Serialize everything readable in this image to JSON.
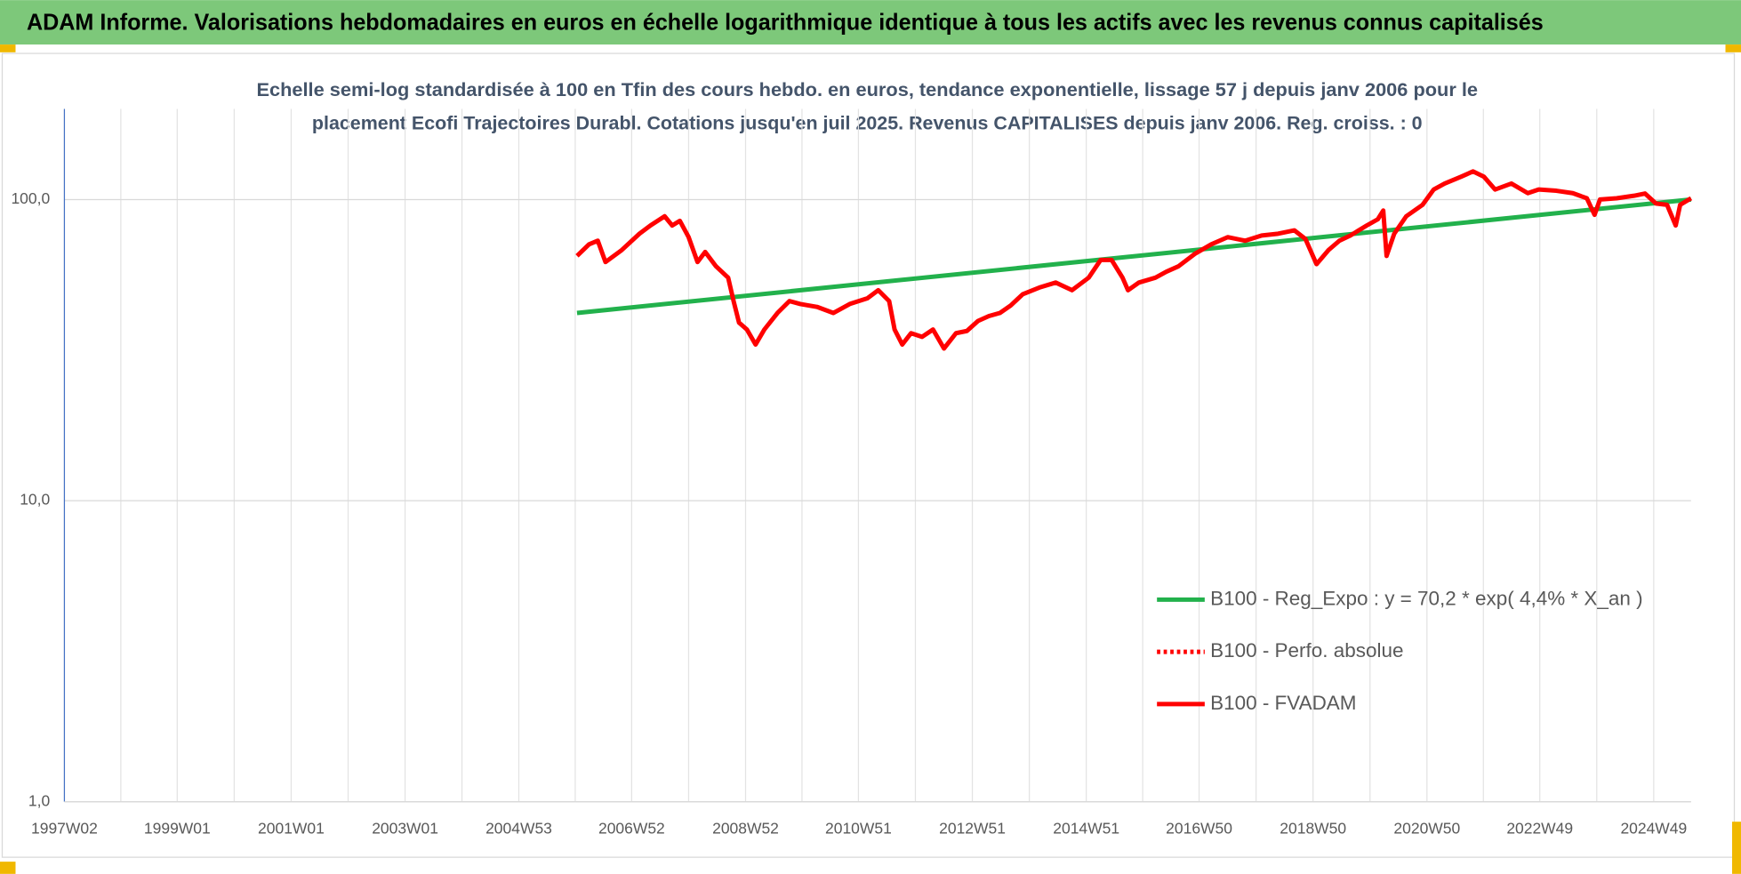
{
  "header": {
    "title": "ADAM Informe. Valorisations hebdomadaires en euros en échelle logarithmique identique à tous les actifs avec les revenus connus capitalisés"
  },
  "chart_data": {
    "type": "line",
    "title": [
      "Echelle semi-log standardisée à 100 en Tfin des cours hebdo. en euros, tendance exponentielle, lissage 57 j depuis janv 2006 pour le",
      "placement Ecofi Trajectoires Durabl. Cotations jusqu'en juil 2025. Revenus CAPITALISES depuis janv 2006. Reg. croiss. : 0"
    ],
    "log_scale": true,
    "grid": true,
    "legend": "lower right",
    "xlim": [
      "1997W02",
      "2025W31"
    ],
    "xticks": [
      "1997W02",
      "1999W01",
      "2001W01",
      "2003W01",
      "2004W53",
      "2006W52",
      "2008W52",
      "2010W51",
      "2012W51",
      "2014W51",
      "2016W50",
      "2018W50",
      "2020W50",
      "2022W49",
      "2024W49"
    ],
    "ylim": [
      1,
      200
    ],
    "yticks": [
      {
        "value": 1,
        "label": "1,0"
      },
      {
        "value": 10,
        "label": "10,0"
      },
      {
        "value": 100,
        "label": "100,0"
      }
    ],
    "series": [
      {
        "name": "B100 - Reg_Expo : y = 70,2 * exp( 4,4% *  X_an )",
        "color": "#22b14c",
        "x": [
          "2006W02",
          "2025W31"
        ],
        "values": [
          42,
          100
        ]
      },
      {
        "name": "B100 - Perfo. absolue",
        "color": "#ff0000",
        "style": "dotted"
      },
      {
        "name": "B100 - FVADAM",
        "color": "#ff0000",
        "x": [
          "2006W02",
          "2006W13",
          "2006W21",
          "2006W28",
          "2006W43",
          "2007W07",
          "2007W17",
          "2007W30",
          "2007W37",
          "2007W44",
          "2007W52",
          "2008W08",
          "2008W15",
          "2008W25",
          "2008W36",
          "2008W41",
          "2008W46",
          "2009W01",
          "2009W09",
          "2009W17",
          "2009W29",
          "2009W40",
          "2009W50",
          "2010W13",
          "2010W28",
          "2010W43",
          "2011W07",
          "2011W17",
          "2011W27",
          "2011W32",
          "2011W39",
          "2011W47",
          "2012W05",
          "2012W15",
          "2012W25",
          "2012W36",
          "2012W46",
          "2013W04",
          "2013W14",
          "2013W24",
          "2013W34",
          "2013W45",
          "2014W08",
          "2014W23",
          "2014W38",
          "2015W01",
          "2015W12",
          "2015W22",
          "2015W32",
          "2015W37",
          "2015W47",
          "2016W10",
          "2016W20",
          "2016W31",
          "2016W46",
          "2017W09",
          "2017W24",
          "2017W40",
          "2018W03",
          "2018W18",
          "2018W33",
          "2018W43",
          "2019W01",
          "2019W12",
          "2019W22",
          "2019W32",
          "2019W47",
          "2020W05",
          "2020W10",
          "2020W13",
          "2020W20",
          "2020W31",
          "2020W46",
          "2021W04",
          "2021W14",
          "2021W29",
          "2021W40",
          "2021W50",
          "2022W08",
          "2022W23",
          "2022W38",
          "2022W48",
          "2023W12",
          "2023W27",
          "2023W40",
          "2023W47",
          "2023W52",
          "2024W15",
          "2024W31",
          "2024W41",
          "2024W51",
          "2025W09",
          "2025W17",
          "2025W21",
          "2025W31"
        ],
        "values": [
          65,
          71,
          73,
          62,
          68,
          77,
          82,
          88,
          82,
          85,
          75,
          62,
          67,
          60,
          55,
          46,
          39,
          37,
          33,
          37,
          42,
          46,
          45,
          44,
          42,
          45,
          47,
          50,
          46,
          37,
          33,
          36,
          35,
          37,
          32,
          36,
          36.6,
          39.5,
          41,
          42,
          44.5,
          48.5,
          51,
          53,
          50,
          55,
          63,
          63,
          55,
          50,
          53,
          55,
          57.6,
          60,
          66,
          71,
          75,
          73,
          76,
          77,
          79,
          74,
          61,
          68,
          73,
          76,
          82,
          86,
          92,
          65,
          77,
          88,
          96,
          108,
          113,
          119,
          124,
          119,
          108,
          113,
          105,
          108,
          107,
          105,
          101,
          89,
          100,
          101,
          103,
          104.7,
          97,
          96,
          82,
          96,
          101
        ]
      }
    ]
  }
}
